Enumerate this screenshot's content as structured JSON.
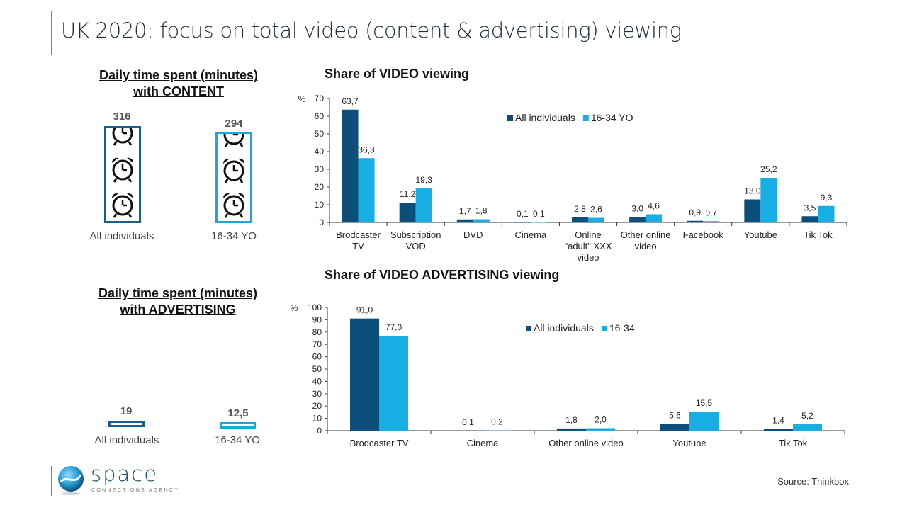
{
  "page": {
    "title": "UK 2020: focus on total video (content & advertising) viewing"
  },
  "content_panel": {
    "heading_line1": "Daily time spent (minutes)",
    "heading_line2": "with CONTENT",
    "groups": [
      {
        "label": "All individuals",
        "value": "316",
        "color": "#1b5e8c"
      },
      {
        "label": "16-34 YO",
        "value": "294",
        "color": "#1aa7e0"
      }
    ],
    "icon": "alarm-clock-icon"
  },
  "advertising_panel": {
    "heading_line1": "Daily time spent (minutes)",
    "heading_line2": "with ADVERTISING",
    "groups": [
      {
        "label": "All individuals",
        "value": "19",
        "color": "#1b5e8c"
      },
      {
        "label": "16-34 YO",
        "value": "12,5",
        "color": "#1aa7e0"
      }
    ]
  },
  "colors": {
    "dark": "#0b4f7a",
    "light": "#16aee3",
    "accent": "#2a9fd6"
  },
  "chart_data": [
    {
      "type": "bar",
      "title": "Share of VIDEO viewing",
      "ylabel": "%",
      "ylim": [
        0,
        70
      ],
      "yticks": [
        0,
        10,
        20,
        30,
        40,
        50,
        60,
        70
      ],
      "legend_position": "top-right",
      "categories": [
        [
          "Brodcaster",
          "TV"
        ],
        [
          "Subscription",
          "VOD"
        ],
        [
          "DVD"
        ],
        [
          "Cinema"
        ],
        [
          "Online",
          "\"adult\" XXX",
          "video"
        ],
        [
          "Other online",
          "video"
        ],
        [
          "Facebook"
        ],
        [
          "Youtube"
        ],
        [
          "Tik Tok"
        ]
      ],
      "series": [
        {
          "name": "All individuals",
          "values": [
            63.7,
            11.2,
            1.7,
            0.1,
            2.8,
            3.0,
            0.9,
            13.0,
            3.5
          ],
          "labels": [
            "63,7",
            "11,2",
            "1,7",
            "0,1",
            "2,8",
            "3,0",
            "0,9",
            "13,0",
            "3,5"
          ]
        },
        {
          "name": "16-34 YO",
          "values": [
            36.3,
            19.3,
            1.8,
            0.1,
            2.6,
            4.6,
            0.7,
            25.2,
            9.3
          ],
          "labels": [
            "36,3",
            "19,3",
            "1,8",
            "0,1",
            "2,6",
            "4,6",
            "0,7",
            "25,2",
            "9,3"
          ]
        }
      ]
    },
    {
      "type": "bar",
      "title": "Share of VIDEO ADVERTISING viewing",
      "ylabel": "%",
      "ylim": [
        0,
        100
      ],
      "yticks": [
        0,
        10,
        20,
        30,
        40,
        50,
        60,
        70,
        80,
        90,
        100
      ],
      "legend_position": "top-right",
      "categories": [
        [
          "Brodcaster TV"
        ],
        [
          "Cinema"
        ],
        [
          "Other online video"
        ],
        [
          "Youtube"
        ],
        [
          "Tik Tok"
        ]
      ],
      "series": [
        {
          "name": "All individuals",
          "values": [
            91.0,
            0.1,
            1.8,
            5.6,
            1.4
          ],
          "labels": [
            "91,0",
            "0,1",
            "1,8",
            "5,6",
            "1,4"
          ]
        },
        {
          "name": "16-34",
          "values": [
            77.0,
            0.2,
            2.0,
            15.5,
            5.2
          ],
          "labels": [
            "77,0",
            "0,2",
            "2,0",
            "15,5",
            "5,2"
          ]
        }
      ]
    }
  ],
  "footer": {
    "logo_word": "space",
    "logo_tagline": "CONNECTIONS AGENCY",
    "source": "Source: Thinkbox"
  }
}
